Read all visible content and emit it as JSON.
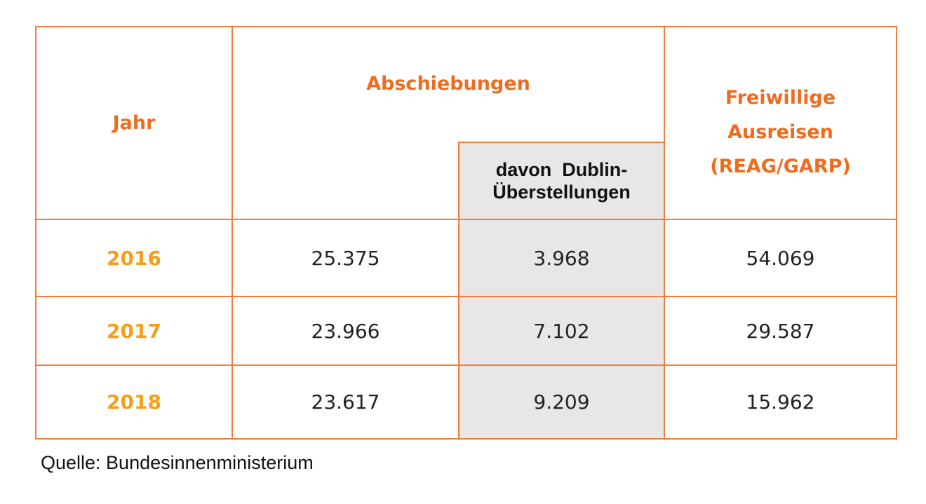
{
  "header": {
    "jahr": "Jahr",
    "abschiebungen": "Abschiebungen",
    "dublin": [
      "davon  Dublin-",
      "Überstellungen"
    ],
    "freiwillige": [
      "Freiwillige",
      "Ausreisen",
      "(REAG/GARP)"
    ]
  },
  "table": {
    "rows": [
      [
        "2016",
        "25.375",
        "3.968",
        "54.069"
      ],
      [
        "2017",
        "23.966",
        "7.102",
        "29.587"
      ],
      [
        "2018",
        "23.617",
        "9.209",
        "15.962"
      ]
    ]
  },
  "source": "Quelle: Bundesinnenministerium"
}
